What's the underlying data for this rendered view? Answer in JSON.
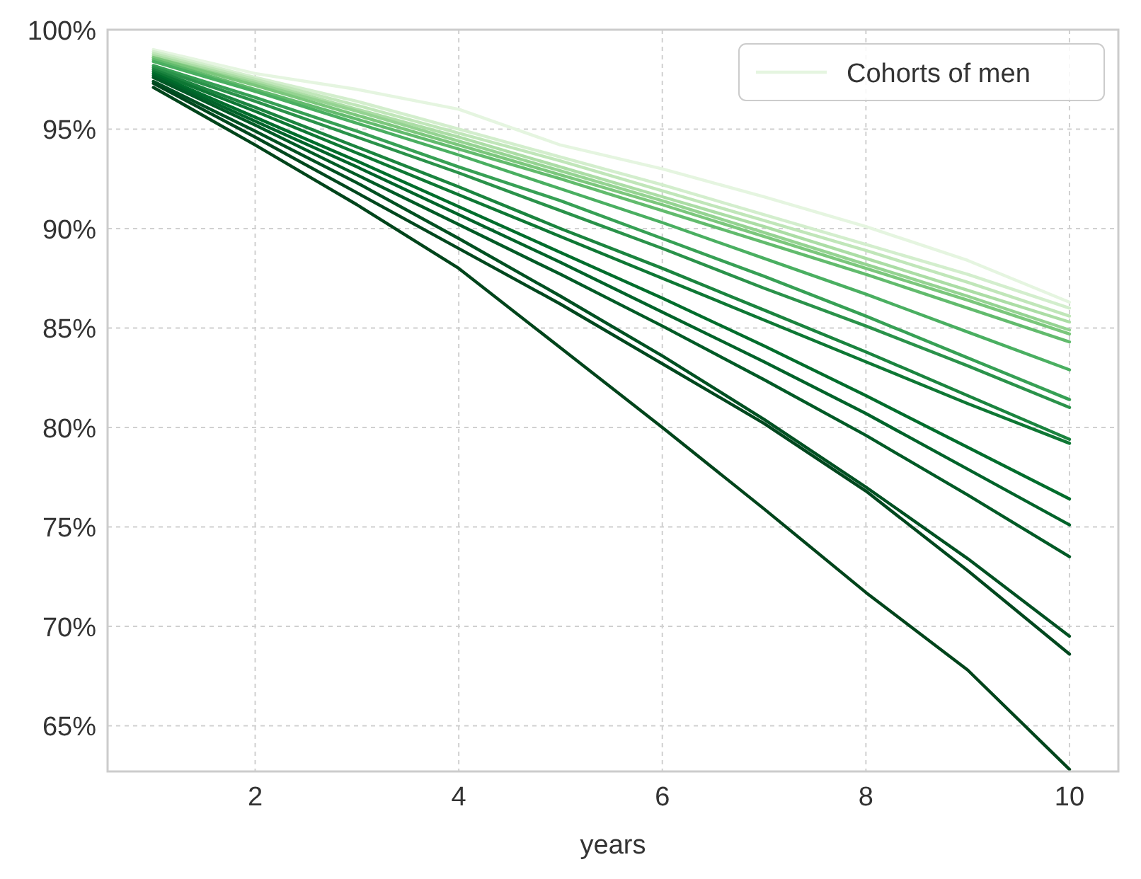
{
  "chart_data": {
    "type": "line",
    "xlabel": "years",
    "x": [
      1,
      2,
      3,
      4,
      5,
      6,
      7,
      8,
      9,
      10
    ],
    "xlim": [
      0.55,
      10.48
    ],
    "xticks": [
      2,
      4,
      6,
      8,
      10
    ],
    "ylim": [
      62.7,
      100
    ],
    "yticks": [
      {
        "value": 65,
        "label": "65%"
      },
      {
        "value": 70,
        "label": "70%"
      },
      {
        "value": 75,
        "label": "75%"
      },
      {
        "value": 80,
        "label": "80%"
      },
      {
        "value": 85,
        "label": "85%"
      },
      {
        "value": 90,
        "label": "90%"
      },
      {
        "value": 95,
        "label": "95%"
      },
      {
        "value": 100,
        "label": "100%"
      }
    ],
    "grid": true,
    "legend": "top right",
    "marker": "none",
    "line_style": "solid",
    "series": [
      {
        "name": "Cohorts of men",
        "color": "#e5f5e0",
        "values": [
          99.0,
          97.8,
          97.0,
          96.0,
          94.2,
          93.0,
          91.6,
          90.1,
          88.4,
          86.3
        ]
      },
      {
        "color": "#d3eecd",
        "values": [
          98.9,
          97.6,
          96.4,
          95.0,
          93.6,
          92.2,
          90.7,
          89.2,
          87.7,
          86.0
        ]
      },
      {
        "color": "#c0e6b9",
        "values": [
          98.8,
          97.5,
          96.2,
          94.8,
          93.4,
          91.9,
          90.4,
          88.9,
          87.3,
          85.6
        ]
      },
      {
        "color": "#abdda5",
        "values": [
          98.7,
          97.4,
          96.0,
          94.6,
          93.1,
          91.6,
          90.1,
          88.5,
          86.9,
          85.3
        ]
      },
      {
        "color": "#94d391",
        "values": [
          98.6,
          97.3,
          95.9,
          94.4,
          92.9,
          91.4,
          89.8,
          88.2,
          86.6,
          84.9
        ]
      },
      {
        "color": "#7bc77c",
        "values": [
          98.6,
          97.2,
          95.7,
          94.2,
          92.7,
          91.2,
          89.6,
          88.0,
          86.4,
          84.7
        ]
      },
      {
        "color": "#62bb6d",
        "values": [
          98.5,
          97.0,
          95.5,
          94.0,
          92.5,
          90.9,
          89.3,
          87.7,
          86.0,
          84.3
        ]
      },
      {
        "color": "#4aaf61",
        "values": [
          98.4,
          96.9,
          95.3,
          93.7,
          92.0,
          90.3,
          88.5,
          86.7,
          84.8,
          82.9
        ]
      },
      {
        "color": "#37a055",
        "values": [
          98.2,
          96.6,
          94.9,
          93.1,
          91.4,
          89.5,
          87.6,
          85.6,
          83.5,
          81.4
        ]
      },
      {
        "color": "#2a924a",
        "values": [
          98.1,
          96.4,
          94.6,
          92.8,
          90.9,
          89.0,
          87.0,
          85.1,
          83.1,
          81.0
        ]
      },
      {
        "color": "#1b843f",
        "values": [
          98.0,
          96.1,
          94.1,
          92.1,
          90.0,
          88.0,
          85.9,
          83.8,
          81.6,
          79.4
        ]
      },
      {
        "color": "#0e7734",
        "values": [
          97.9,
          95.9,
          93.8,
          91.7,
          89.6,
          87.5,
          85.4,
          83.3,
          81.2,
          79.2
        ]
      },
      {
        "color": "#006d2c",
        "values": [
          97.8,
          95.6,
          93.4,
          91.1,
          88.8,
          86.5,
          84.1,
          81.6,
          79.0,
          76.4
        ]
      },
      {
        "color": "#00632a",
        "values": [
          97.7,
          95.4,
          93.1,
          90.7,
          88.3,
          85.8,
          83.3,
          80.7,
          77.9,
          75.1
        ]
      },
      {
        "color": "#005a26",
        "values": [
          97.6,
          95.2,
          92.7,
          90.2,
          87.7,
          85.1,
          82.4,
          79.6,
          76.6,
          73.5
        ]
      },
      {
        "color": "#005022",
        "values": [
          97.4,
          94.9,
          92.3,
          89.5,
          86.6,
          83.6,
          80.4,
          77.0,
          73.4,
          69.5
        ]
      },
      {
        "color": "#00471e",
        "values": [
          97.3,
          94.6,
          91.8,
          89.0,
          86.2,
          83.2,
          80.2,
          76.8,
          72.8,
          68.6
        ]
      },
      {
        "color": "#00441b",
        "values": [
          97.1,
          94.2,
          91.2,
          88.0,
          84.0,
          80.0,
          75.9,
          71.7,
          67.8,
          62.8
        ]
      }
    ]
  }
}
